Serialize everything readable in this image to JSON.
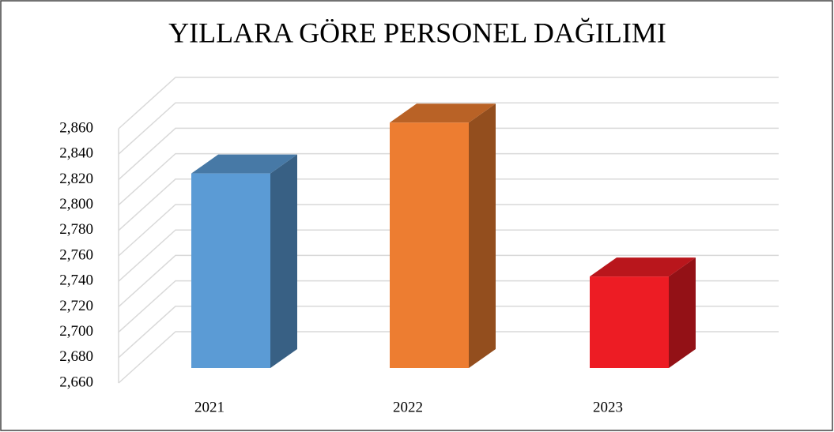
{
  "chart_data": {
    "type": "bar3d",
    "title": "YILLARA GÖRE PERSONEL DAĞILIMI",
    "categories": [
      "2021",
      "2022",
      "2023"
    ],
    "values": [
      2813,
      2853,
      2732
    ],
    "colors": [
      "#5b9bd5",
      "#ed7d31",
      "#ed1c24"
    ],
    "ylim": [
      2660,
      2860
    ],
    "yticks": [
      {
        "value": 2660,
        "label": "2,660"
      },
      {
        "value": 2680,
        "label": "2,680"
      },
      {
        "value": 2700,
        "label": "2,700"
      },
      {
        "value": 2720,
        "label": "2,720"
      },
      {
        "value": 2740,
        "label": "2,740"
      },
      {
        "value": 2760,
        "label": "2,760"
      },
      {
        "value": 2780,
        "label": "2,780"
      },
      {
        "value": 2800,
        "label": "2,800"
      },
      {
        "value": 2820,
        "label": "2,820"
      },
      {
        "value": 2840,
        "label": "2,840"
      },
      {
        "value": 2860,
        "label": "2,860"
      }
    ],
    "grid": true
  }
}
